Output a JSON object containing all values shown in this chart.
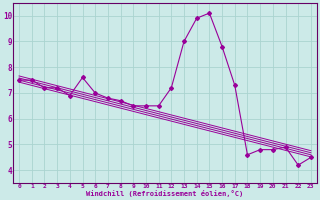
{
  "xlabel": "Windchill (Refroidissement éolien,°C)",
  "bg_color": "#cceae8",
  "grid_color": "#aad4d0",
  "line_color": "#990099",
  "spine_color": "#660066",
  "xlim": [
    -0.5,
    23.5
  ],
  "ylim": [
    3.5,
    10.5
  ],
  "xticks": [
    0,
    1,
    2,
    3,
    4,
    5,
    6,
    7,
    8,
    9,
    10,
    11,
    12,
    13,
    14,
    15,
    16,
    17,
    18,
    19,
    20,
    21,
    22,
    23
  ],
  "yticks": [
    4,
    5,
    6,
    7,
    8,
    9,
    10
  ],
  "series": [
    7.5,
    7.5,
    7.2,
    7.2,
    6.9,
    7.6,
    7.0,
    6.8,
    6.7,
    6.5,
    6.5,
    6.5,
    7.2,
    9.0,
    9.9,
    10.1,
    8.8,
    7.3,
    4.6,
    4.8,
    4.8,
    4.9,
    4.2,
    4.5
  ],
  "trend_x": [
    0,
    23
  ],
  "trend_y_start": 7.5,
  "trend_y_end": 4.6,
  "trend_offsets": [
    -0.08,
    0.0,
    0.08,
    0.16
  ]
}
